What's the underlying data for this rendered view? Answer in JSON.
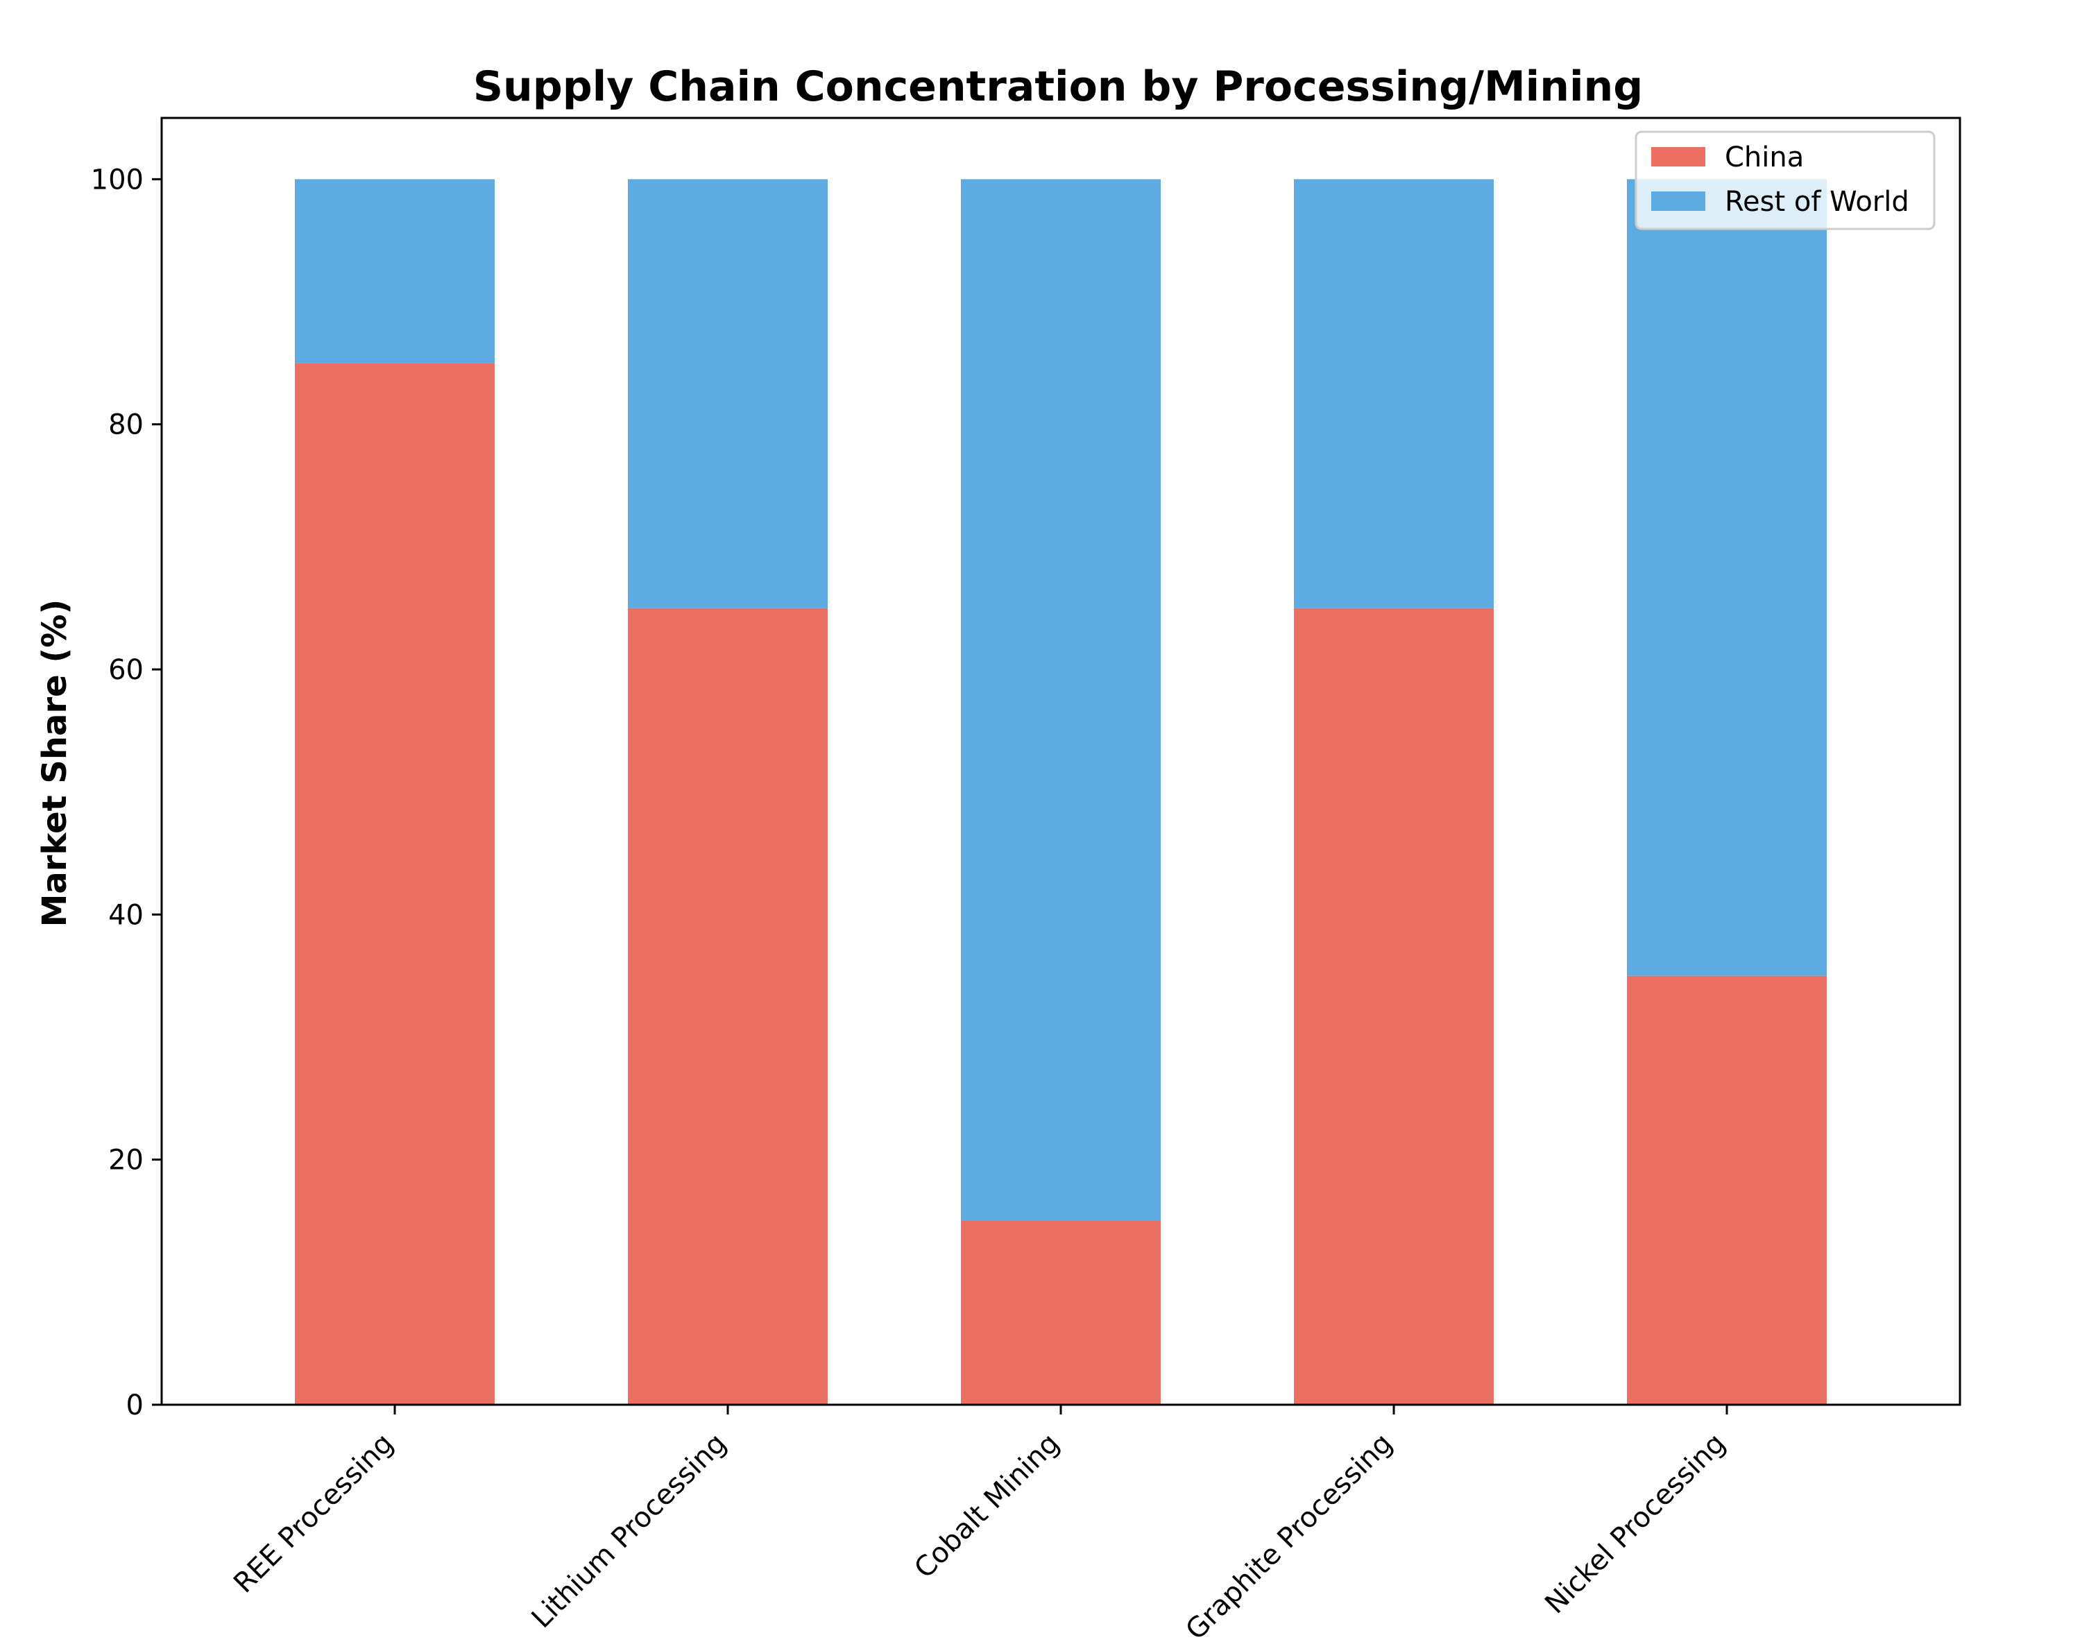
{
  "chart_data": {
    "type": "bar",
    "stacked": true,
    "title": "Supply Chain Concentration by Processing/Mining",
    "xlabel": "",
    "ylabel": "Market Share (%)",
    "ylim": [
      0,
      105
    ],
    "yticks": [
      0,
      20,
      40,
      60,
      80,
      100
    ],
    "categories": [
      "REE Processing",
      "Lithium Processing",
      "Cobalt Mining",
      "Graphite Processing",
      "Nickel Processing"
    ],
    "series": [
      {
        "name": "China",
        "values": [
          85,
          65,
          15,
          65,
          35
        ],
        "color": "#eb6f63"
      },
      {
        "name": "Rest of World",
        "values": [
          15,
          35,
          85,
          35,
          65
        ],
        "color": "#5dabe1"
      }
    ],
    "grid": false,
    "legend_position": "top-right"
  }
}
